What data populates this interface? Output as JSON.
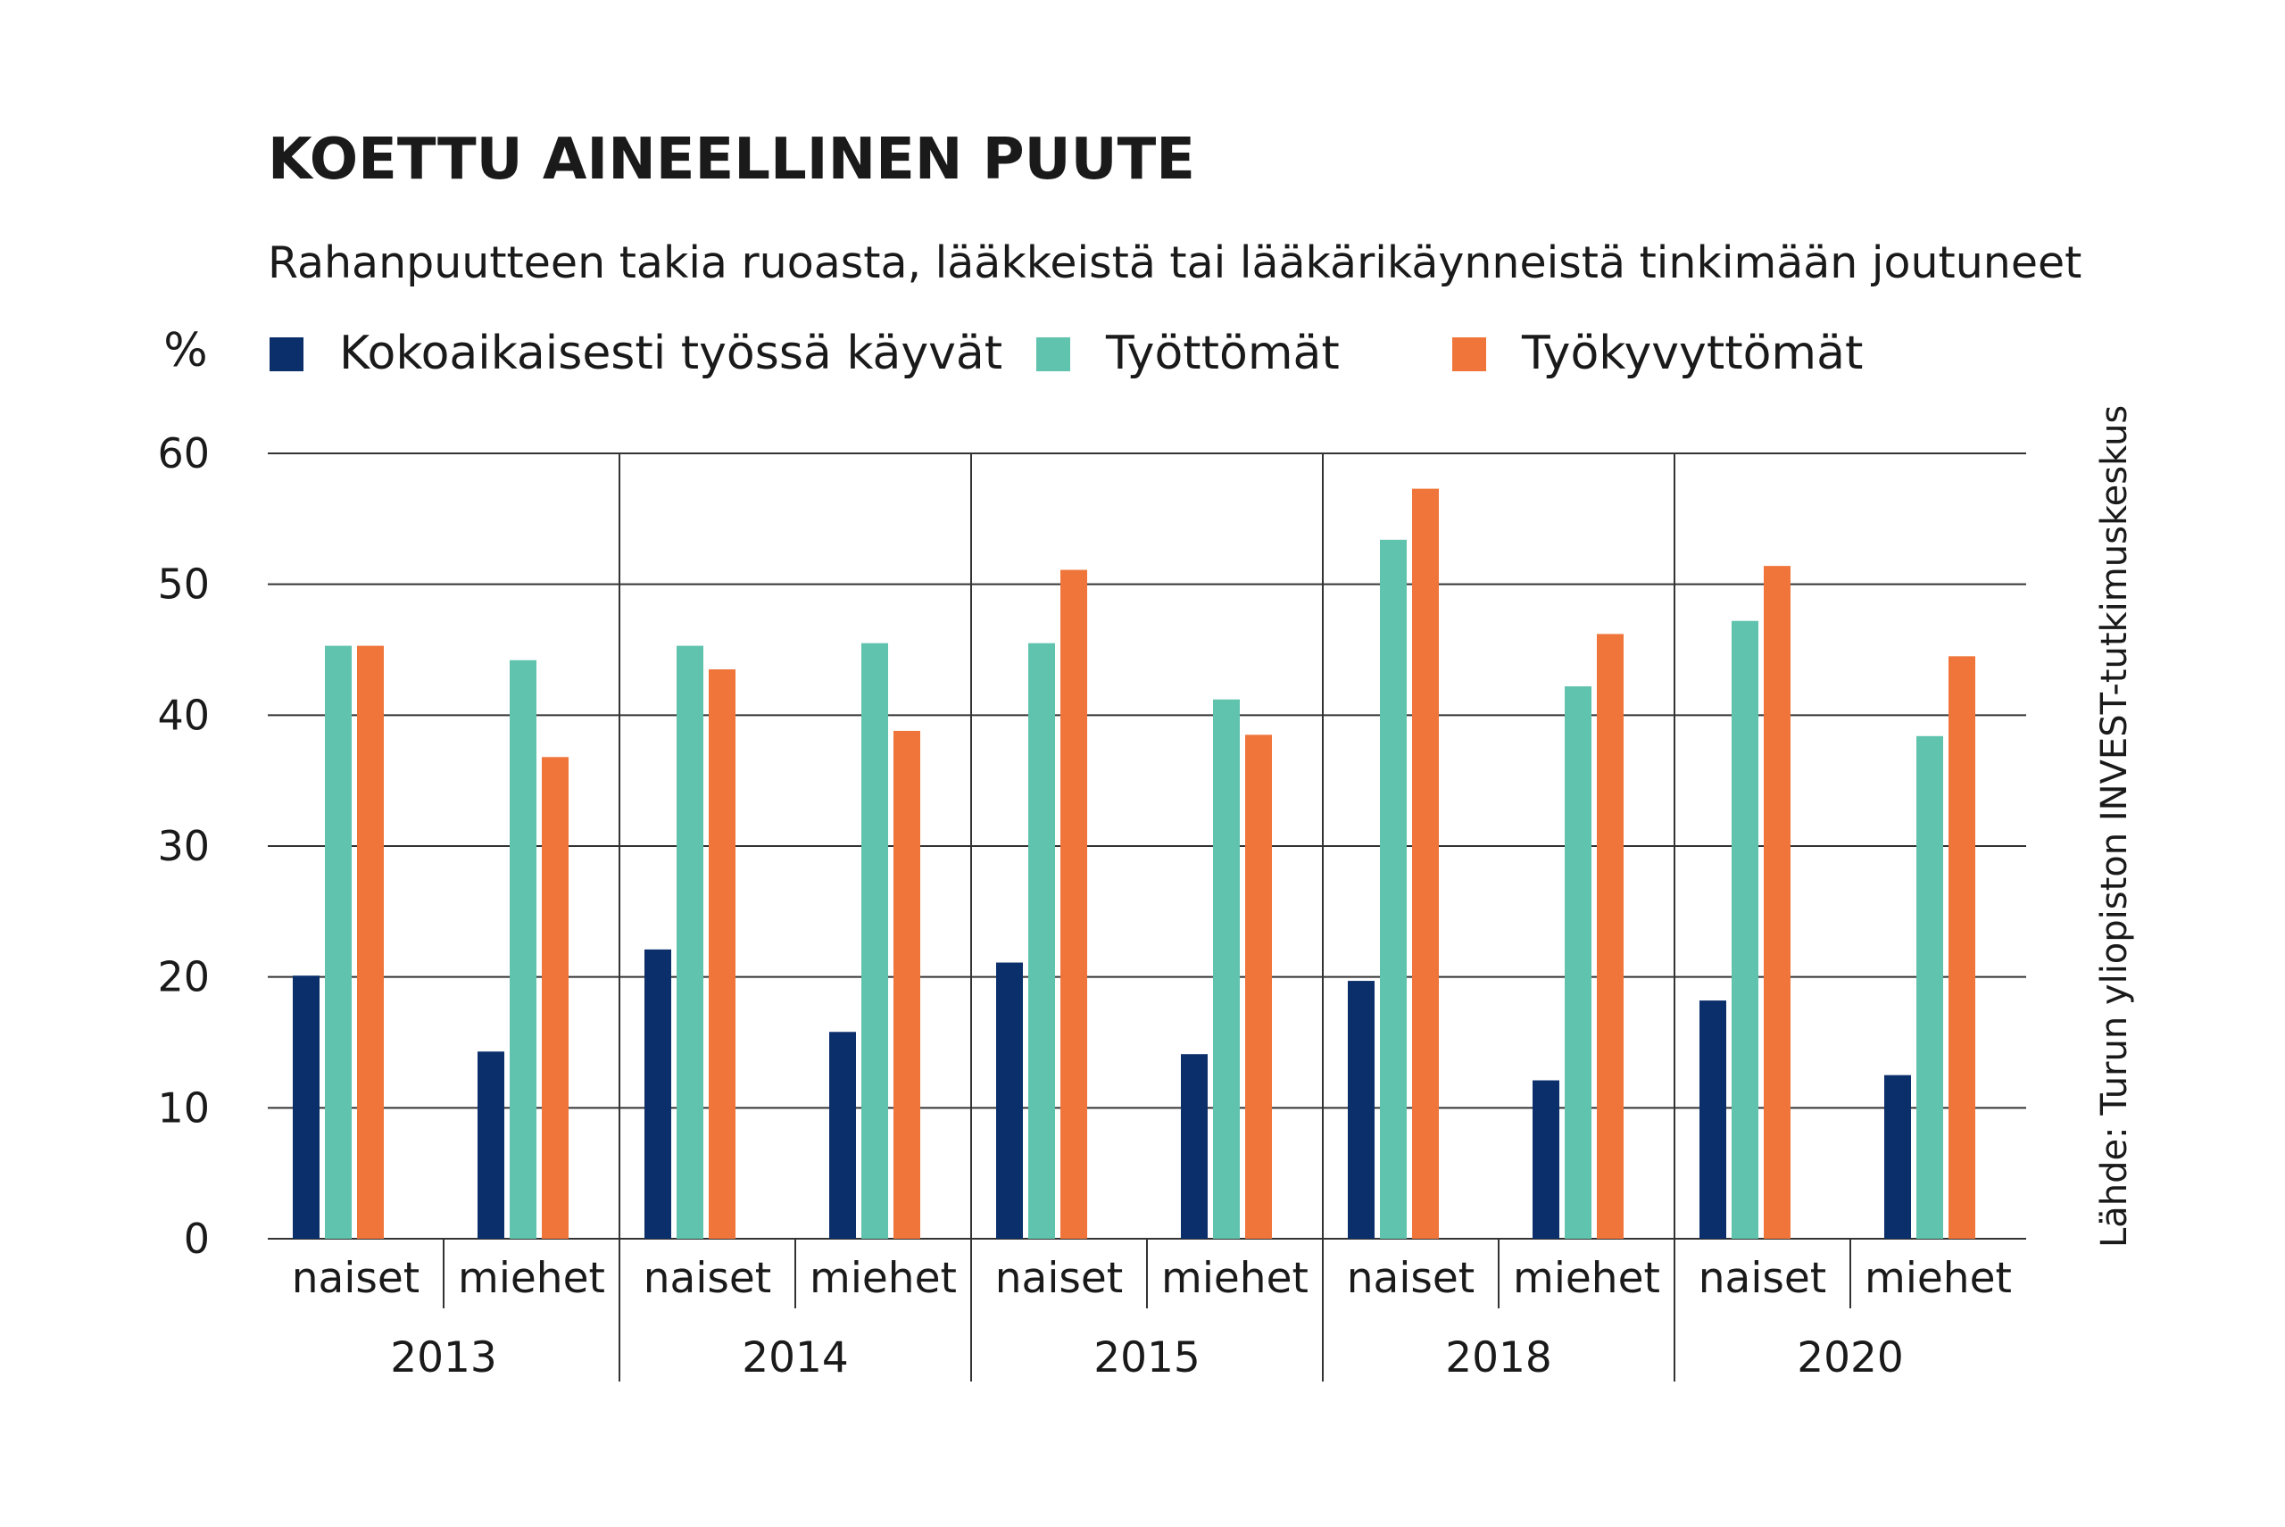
{
  "chart_data": {
    "type": "bar",
    "title": "KOETTU AINEELLINEN PUUTE",
    "subtitle": "Rahanpuutteen takia ruoasta, lääkkeistä tai lääkärikäynneistä tinkimään joutuneet",
    "ylabel": "%",
    "ylim": [
      0,
      60
    ],
    "yticks": [
      "0",
      "10",
      "20",
      "30",
      "40",
      "50",
      "60"
    ],
    "grid": true,
    "legend_position": "top",
    "source": "Lähde: Turun yliopiston INVEST-tutkimuskeskus",
    "groups": [
      {
        "year": "2013",
        "categories": [
          "naiset",
          "miehet"
        ]
      },
      {
        "year": "2014",
        "categories": [
          "naiset",
          "miehet"
        ]
      },
      {
        "year": "2015",
        "categories": [
          "naiset",
          "miehet"
        ]
      },
      {
        "year": "2018",
        "categories": [
          "naiset",
          "miehet"
        ]
      },
      {
        "year": "2020",
        "categories": [
          "naiset",
          "miehet"
        ]
      }
    ],
    "series": [
      {
        "name": "Kokoaikaisesti työssä käyvät",
        "color": "#0b2f6b",
        "values": [
          20.1,
          14.3,
          22.1,
          15.8,
          21.1,
          14.1,
          19.7,
          12.1,
          18.2,
          12.5
        ]
      },
      {
        "name": "Työttömät",
        "color": "#5fc3ad",
        "values": [
          45.3,
          44.2,
          45.3,
          45.5,
          45.5,
          41.2,
          53.4,
          42.2,
          47.2,
          38.4
        ]
      },
      {
        "name": "Työkyvyttömät",
        "color": "#f0753a",
        "values": [
          45.3,
          36.8,
          43.5,
          38.8,
          51.1,
          38.5,
          57.3,
          46.2,
          51.4,
          44.5
        ]
      }
    ]
  }
}
